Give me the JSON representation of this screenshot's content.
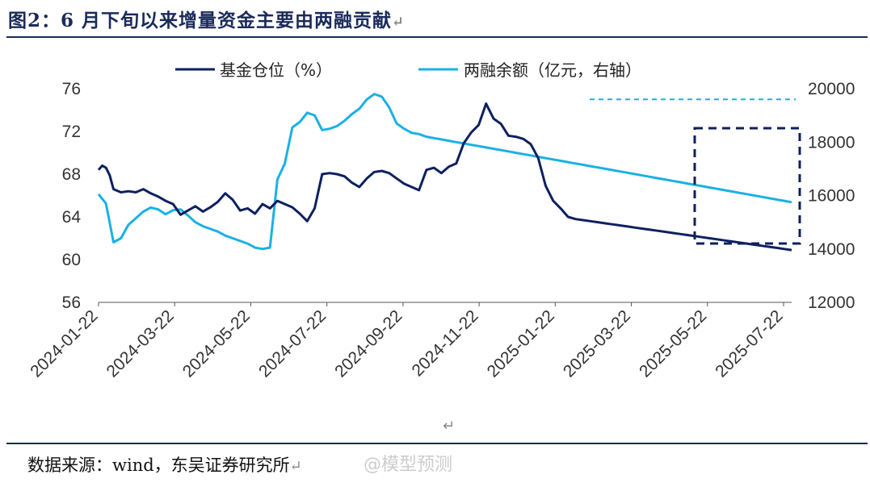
{
  "header": {
    "title": "图2：6 月下旬以来增量资金主要由两融贡献",
    "return_mark": "↵"
  },
  "footer": {
    "source": "数据来源：wind，东吴证券研究所",
    "return_mark": "↵",
    "watermark": "@模型预测",
    "center_mark": "↵"
  },
  "colors": {
    "fund": "#0d2060",
    "margin": "#1ab1e2",
    "box": "#0d2060",
    "ref_line": "#1ab1e2"
  },
  "chart_data": {
    "type": "line",
    "title": "6 月下旬以来增量资金主要由两融贡献",
    "legend_position": "top",
    "x_ticks": [
      "2024-01-22",
      "2024-03-22",
      "2024-05-22",
      "2024-07-22",
      "2024-09-22",
      "2024-11-22",
      "2025-01-22",
      "2025-03-22",
      "2025-05-22",
      "2025-07-22"
    ],
    "y_left": {
      "ticks": [
        "56",
        "60",
        "64",
        "68",
        "72",
        "76"
      ],
      "min": 56,
      "max": 76
    },
    "y_right": {
      "ticks": [
        "12000",
        "14000",
        "16000",
        "18000",
        "20000"
      ],
      "min": 12000,
      "max": 20000
    },
    "grid": false,
    "series": [
      {
        "name": "基金仓位（%）",
        "axis": "left",
        "x": [
          0,
          1,
          2,
          3,
          4,
          6,
          8,
          10,
          12,
          14,
          16,
          18,
          20,
          22,
          24,
          26,
          28,
          30,
          32,
          34,
          36,
          38,
          40,
          42,
          44,
          46,
          48,
          50,
          52,
          54,
          56,
          58,
          60,
          62,
          64,
          66,
          68,
          70,
          72,
          74,
          76,
          78,
          80,
          82,
          84,
          86,
          88,
          90,
          92,
          94,
          96,
          98,
          100,
          102,
          104,
          106,
          108,
          110,
          112,
          114,
          116,
          118,
          120,
          122,
          124,
          126,
          128,
          130,
          132,
          134,
          136,
          138,
          140,
          142,
          144,
          146,
          148,
          150,
          152,
          154,
          156,
          158,
          160,
          162,
          164,
          166,
          168,
          170,
          172,
          174,
          176,
          178,
          180,
          182,
          184,
          186
        ],
        "values": [
          68.4,
          68.8,
          68.6,
          67.9,
          66.6,
          66.3,
          66.4,
          66.3,
          66.6,
          66.2,
          65.9,
          65.5,
          65.2,
          64.2,
          64.6,
          65.0,
          64.5,
          64.9,
          65.4,
          66.2,
          65.6,
          64.6,
          64.8,
          64.3,
          65.2,
          64.8,
          65.5,
          65.2,
          64.9,
          64.3,
          63.6,
          64.8,
          68.0,
          68.1,
          68.0,
          67.8,
          67.2,
          66.8,
          67.6,
          68.2,
          68.3,
          68.1,
          67.6,
          67.1,
          66.8,
          66.5,
          68.4,
          68.6,
          68.1,
          68.7,
          69.0,
          70.9,
          71.9,
          72.6,
          74.6,
          73.2,
          72.7,
          71.6,
          71.5,
          71.3,
          70.8,
          69.5,
          66.9,
          65.5,
          64.8,
          64.0,
          63.8,
          63.7,
          63.6,
          63.5,
          63.4,
          63.3,
          63.2,
          63.1,
          63.0,
          62.9,
          62.8,
          62.7,
          62.6,
          62.5,
          62.4,
          62.3,
          62.2,
          62.1,
          62.0,
          61.9,
          61.8,
          61.7,
          61.6,
          61.5,
          61.4,
          61.3,
          61.2,
          61.1,
          61.0,
          60.9
        ]
      },
      {
        "name": "两融余额（亿元，右轴）",
        "axis": "right",
        "x": [
          0,
          2,
          4,
          6,
          8,
          10,
          12,
          14,
          16,
          18,
          20,
          22,
          24,
          26,
          28,
          30,
          32,
          34,
          36,
          38,
          40,
          42,
          44,
          46,
          48,
          50,
          52,
          54,
          56,
          58,
          60,
          62,
          64,
          66,
          68,
          70,
          72,
          74,
          76,
          78,
          80,
          82,
          84,
          86,
          88,
          90,
          92,
          94,
          96,
          98,
          100,
          102,
          104,
          106,
          108,
          110,
          112,
          114,
          116,
          118,
          120,
          122,
          124,
          126,
          128,
          130,
          132,
          134,
          136,
          138,
          140,
          142,
          144,
          146,
          148,
          150,
          152,
          154,
          156,
          158,
          160,
          162,
          164,
          166,
          168,
          170,
          172,
          174,
          176,
          178,
          180,
          182,
          184,
          186
        ],
        "values": [
          16050,
          15700,
          14250,
          14400,
          14900,
          15150,
          15400,
          15550,
          15480,
          15300,
          15450,
          15480,
          15250,
          15000,
          14850,
          14750,
          14650,
          14500,
          14400,
          14300,
          14200,
          14050,
          14000,
          14050,
          16600,
          17200,
          18550,
          18750,
          19100,
          19000,
          18450,
          18500,
          18600,
          18800,
          19050,
          19250,
          19600,
          19800,
          19700,
          19300,
          18700,
          18500,
          18350,
          18300,
          18200,
          18150,
          18100,
          18050,
          18000,
          17950,
          17900,
          17850,
          17800,
          17750,
          17700,
          17650,
          17600,
          17550,
          17500,
          17450,
          17400,
          17350,
          17300,
          17250,
          17200,
          17150,
          17100,
          17050,
          17000,
          16950,
          16900,
          16850,
          16800,
          16750,
          16700,
          16650,
          16600,
          16550,
          16500,
          16450,
          16400,
          16350,
          16300,
          16250,
          16200,
          16150,
          16100,
          16050,
          16000,
          15950,
          15900,
          15850,
          15800,
          15750
        ]
      }
    ],
    "annotations": {
      "reference_line_value": 19600,
      "highlight_box": {
        "x_from": "2025-05-22",
        "x_to": "2025-07-22"
      }
    }
  }
}
